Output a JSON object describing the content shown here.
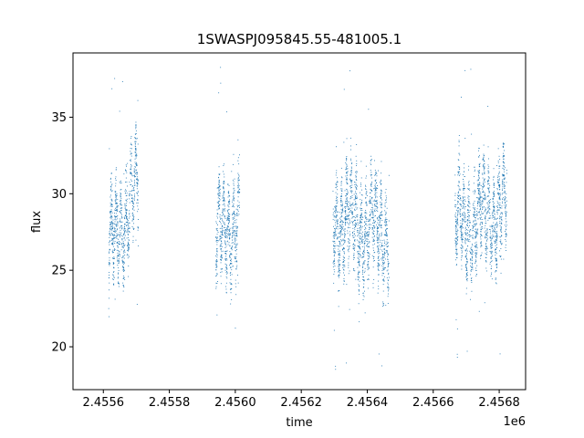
{
  "chart_data": {
    "type": "scatter",
    "title": "1SWASPJ095845.55-481005.1",
    "xlabel": "time",
    "ylabel": "flux",
    "x_offset_label": "1e6",
    "xlim": [
      2455508,
      2456880
    ],
    "ylim": [
      17.2,
      39.2
    ],
    "xticks": [
      2455600,
      2455800,
      2456000,
      2456200,
      2456400,
      2456600,
      2456800
    ],
    "xtick_labels": [
      "2.4556",
      "2.4558",
      "2.4560",
      "2.4562",
      "2.4564",
      "2.4566",
      "2.4568"
    ],
    "yticks": [
      20,
      25,
      30,
      35
    ],
    "ytick_labels": [
      "20",
      "25",
      "30",
      "35"
    ],
    "grid": false,
    "marker_color": "#1f77b4",
    "series": [
      {
        "segments": [
          {
            "x_start": 2455615,
            "x_end": 2455705,
            "median_start": 26.0,
            "median_end": 30.5,
            "spread": 2.2,
            "outlier_low": 21.8,
            "outlier_high": 38.0
          },
          {
            "x_start": 2455940,
            "x_end": 2456012,
            "median_start": 27.0,
            "median_end": 28.5,
            "spread": 2.3,
            "outlier_low": 20.0,
            "outlier_high": 38.5
          },
          {
            "x_start": 2456295,
            "x_end": 2456465,
            "median_start": 28.5,
            "median_end": 27.5,
            "spread": 2.4,
            "outlier_low": 18.2,
            "outlier_high": 38.2
          },
          {
            "x_start": 2456665,
            "x_end": 2456822,
            "median_start": 28.0,
            "median_end": 29.0,
            "spread": 2.2,
            "outlier_low": 19.0,
            "outlier_high": 38.3
          }
        ]
      }
    ]
  }
}
